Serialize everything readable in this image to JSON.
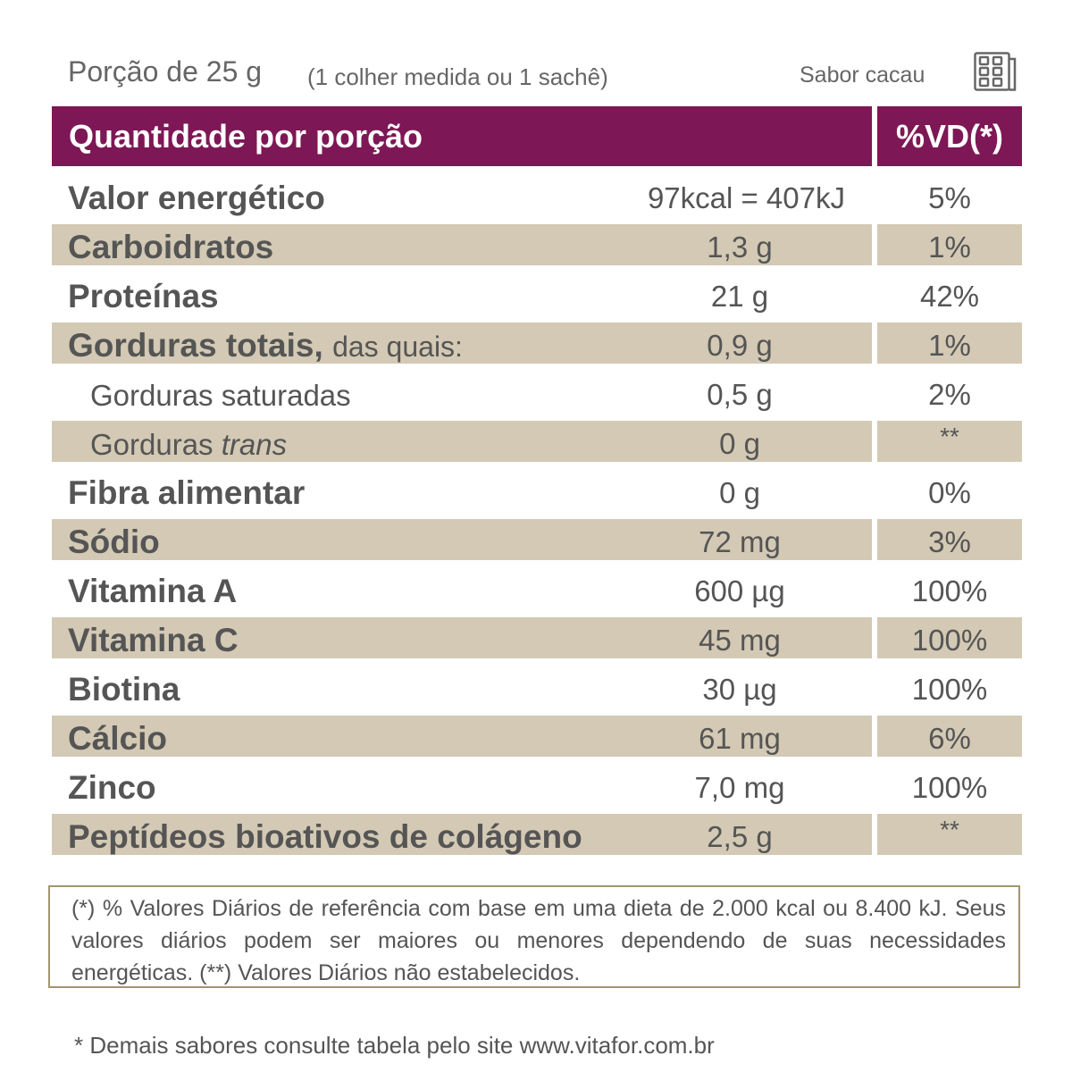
{
  "header": {
    "portion": "Porção de 25 g",
    "portion_note": "(1 colher medida ou 1 sachê)",
    "flavor": "Sabor cacau"
  },
  "table": {
    "col_quantity": "Quantidade por porção",
    "col_vd": "%VD(*)",
    "rows": [
      {
        "name": "Valor energético",
        "amount": "97kcal = 407kJ",
        "vd": "5%"
      },
      {
        "name": "Carboidratos",
        "amount": "1,3 g",
        "vd": "1%"
      },
      {
        "name": "Proteínas",
        "amount": "21 g",
        "vd": "42%"
      },
      {
        "name": "Gorduras totais,",
        "name_suffix": "das quais:",
        "amount": "0,9 g",
        "vd": "1%"
      },
      {
        "name": "Gorduras saturadas",
        "amount": "0,5 g",
        "vd": "2%"
      },
      {
        "name": "Gorduras",
        "name_italic": "trans",
        "amount": "0 g",
        "vd": "**"
      },
      {
        "name": "Fibra alimentar",
        "amount": "0 g",
        "vd": "0%"
      },
      {
        "name": "Sódio",
        "amount": "72 mg",
        "vd": "3%"
      },
      {
        "name": "Vitamina A",
        "amount": "600 µg",
        "vd": "100%"
      },
      {
        "name": "Vitamina C",
        "amount": "45 mg",
        "vd": "100%"
      },
      {
        "name": "Biotina",
        "amount": "30 µg",
        "vd": "100%"
      },
      {
        "name": "Cálcio",
        "amount": "61 mg",
        "vd": "6%"
      },
      {
        "name": "Zinco",
        "amount": "7,0 mg",
        "vd": "100%"
      },
      {
        "name": "Peptídeos bioativos de colágeno",
        "amount": "2,5 g",
        "vd": "**"
      }
    ]
  },
  "note": "(*) % Valores Diários de referência com base em uma dieta de 2.000 kcal ou 8.400 kJ. Seus valores diários podem ser maiores ou menores dependendo de suas necessidades energéticas. (**) Valores Diários não estabelecidos.",
  "footer": "* Demais sabores consulte tabela pelo site www.vitafor.com.br",
  "colors": {
    "header_bg": "#7e1755",
    "row_shade": "#d3c9b4",
    "text": "#555555",
    "note_border": "#a39472"
  },
  "icons": {
    "flavor_icon": "chocolate-bar-icon"
  }
}
